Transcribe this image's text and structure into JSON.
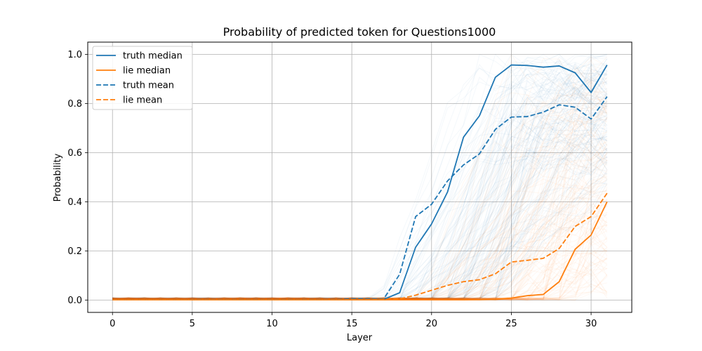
{
  "chart_data": {
    "type": "line",
    "title": "Probability of predicted token for Questions1000",
    "xlabel": "Layer",
    "ylabel": "Probability",
    "xlim": [
      -1.55,
      32.55
    ],
    "ylim": [
      -0.05,
      1.05
    ],
    "xticks": [
      0,
      5,
      10,
      15,
      20,
      25,
      30
    ],
    "yticks": [
      0.0,
      0.2,
      0.4,
      0.6,
      0.8,
      1.0
    ],
    "ytick_labels": [
      "0.0",
      "0.2",
      "0.4",
      "0.6",
      "0.8",
      "1.0"
    ],
    "grid": true,
    "legend_position": "top-left",
    "colors": {
      "truth": "#1f77b4",
      "lie": "#ff7f0e"
    },
    "x": [
      0,
      1,
      2,
      3,
      4,
      5,
      6,
      7,
      8,
      9,
      10,
      11,
      12,
      13,
      14,
      15,
      16,
      17,
      18,
      19,
      20,
      21,
      22,
      23,
      24,
      25,
      26,
      27,
      28,
      29,
      30,
      31
    ],
    "series": [
      {
        "name": "truth median",
        "style": "solid",
        "color": "#1f77b4",
        "values": [
          0.001,
          0.001,
          0.001,
          0.001,
          0.001,
          0.001,
          0.001,
          0.001,
          0.001,
          0.001,
          0.001,
          0.001,
          0.001,
          0.001,
          0.001,
          0.002,
          0.002,
          0.003,
          0.03,
          0.215,
          0.31,
          0.44,
          0.663,
          0.75,
          0.907,
          0.957,
          0.955,
          0.948,
          0.953,
          0.925,
          0.845,
          0.957
        ]
      },
      {
        "name": "lie median",
        "style": "solid",
        "color": "#ff7f0e",
        "values": [
          0.001,
          0.001,
          0.001,
          0.001,
          0.001,
          0.001,
          0.001,
          0.001,
          0.001,
          0.001,
          0.001,
          0.001,
          0.001,
          0.001,
          0.001,
          0.001,
          0.001,
          0.001,
          0.001,
          0.001,
          0.001,
          0.001,
          0.001,
          0.002,
          0.003,
          0.008,
          0.018,
          0.023,
          0.075,
          0.207,
          0.265,
          0.4
        ]
      },
      {
        "name": "truth mean",
        "style": "dashed",
        "color": "#1f77b4",
        "values": [
          0.001,
          0.001,
          0.001,
          0.001,
          0.001,
          0.002,
          0.002,
          0.002,
          0.002,
          0.002,
          0.002,
          0.002,
          0.002,
          0.002,
          0.002,
          0.005,
          0.005,
          0.005,
          0.105,
          0.34,
          0.39,
          0.485,
          0.55,
          0.595,
          0.695,
          0.745,
          0.747,
          0.765,
          0.795,
          0.785,
          0.737,
          0.828
        ]
      },
      {
        "name": "lie mean",
        "style": "dashed",
        "color": "#ff7f0e",
        "values": [
          0.001,
          0.001,
          0.001,
          0.001,
          0.001,
          0.001,
          0.001,
          0.001,
          0.001,
          0.001,
          0.001,
          0.001,
          0.001,
          0.001,
          0.001,
          0.002,
          0.002,
          0.003,
          0.005,
          0.02,
          0.04,
          0.06,
          0.075,
          0.083,
          0.107,
          0.155,
          0.162,
          0.17,
          0.21,
          0.3,
          0.34,
          0.435
        ]
      }
    ]
  }
}
